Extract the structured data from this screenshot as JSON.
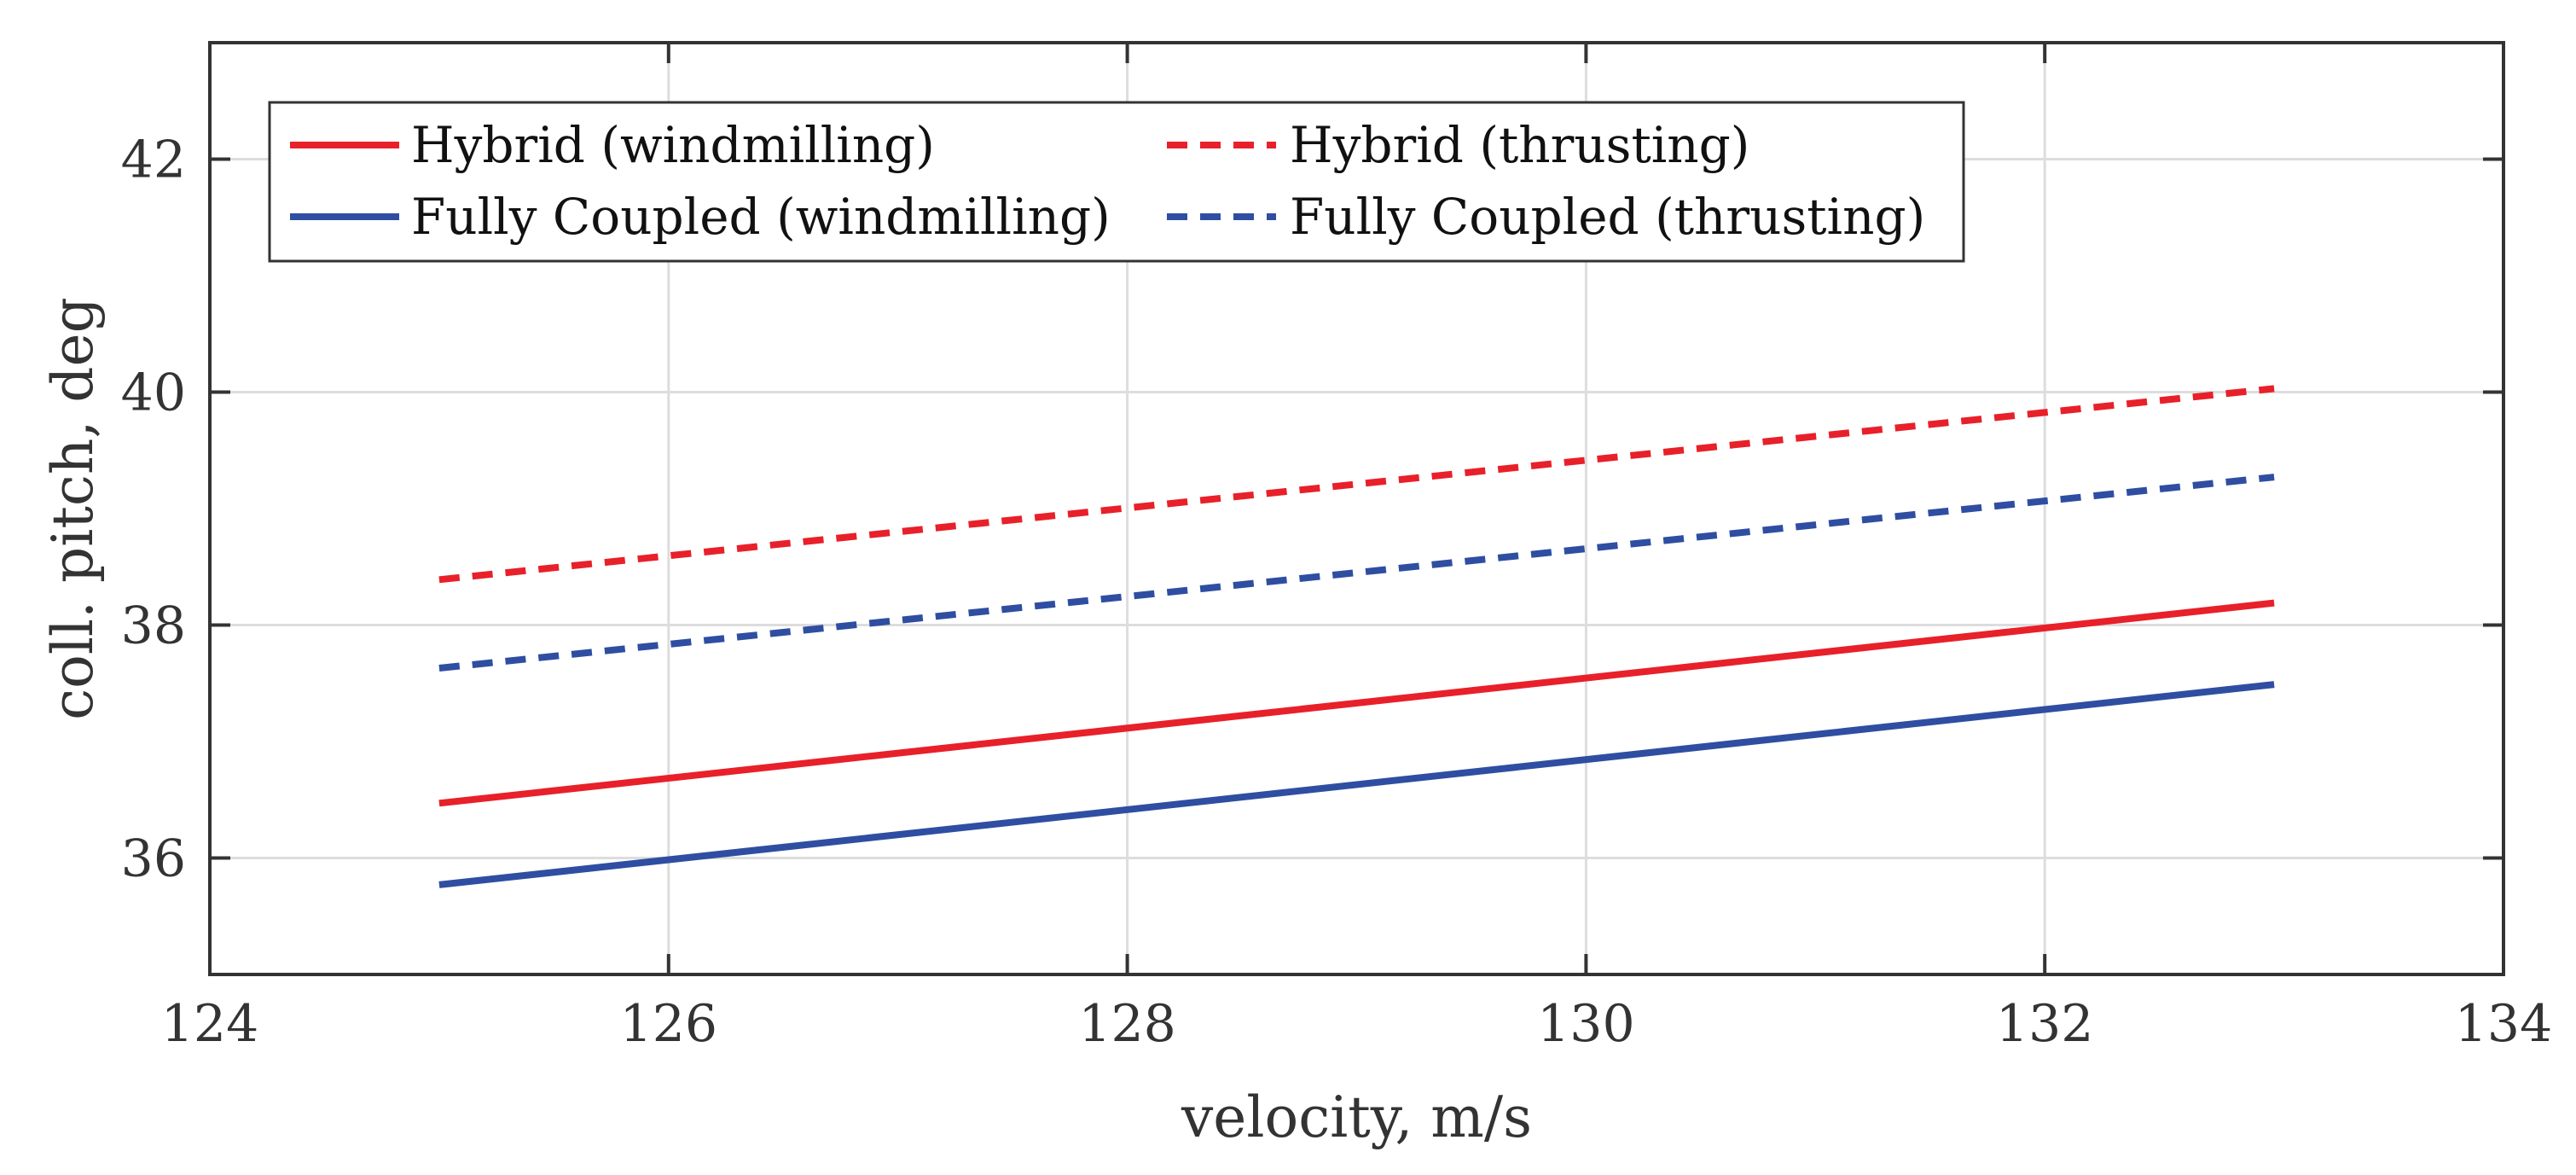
{
  "chart_data": {
    "type": "line",
    "title": "",
    "xlabel": "velocity, m/s",
    "ylabel": "coll. pitch, deg",
    "xlim": [
      124,
      134
    ],
    "ylim": [
      35,
      43
    ],
    "xticks": [
      124,
      126,
      128,
      130,
      132,
      134
    ],
    "yticks": [
      36,
      38,
      40,
      42
    ],
    "grid": true,
    "legend_position": "top-left",
    "legend_columns": 2,
    "series": [
      {
        "name": "Hybrid (windmilling)",
        "color": "#e8202a",
        "style": "solid",
        "x": [
          125,
          133
        ],
        "y": [
          36.47,
          38.19
        ]
      },
      {
        "name": "Fully Coupled (windmilling)",
        "color": "#2f4ea2",
        "style": "solid",
        "x": [
          125,
          133
        ],
        "y": [
          35.77,
          37.49
        ]
      },
      {
        "name": "Hybrid (thrusting)",
        "color": "#e8202a",
        "style": "dashed",
        "x": [
          125,
          133
        ],
        "y": [
          38.39,
          40.03
        ]
      },
      {
        "name": "Fully Coupled (thrusting)",
        "color": "#2f4ea2",
        "style": "dashed",
        "x": [
          125,
          133
        ],
        "y": [
          37.63,
          39.27
        ]
      }
    ]
  }
}
